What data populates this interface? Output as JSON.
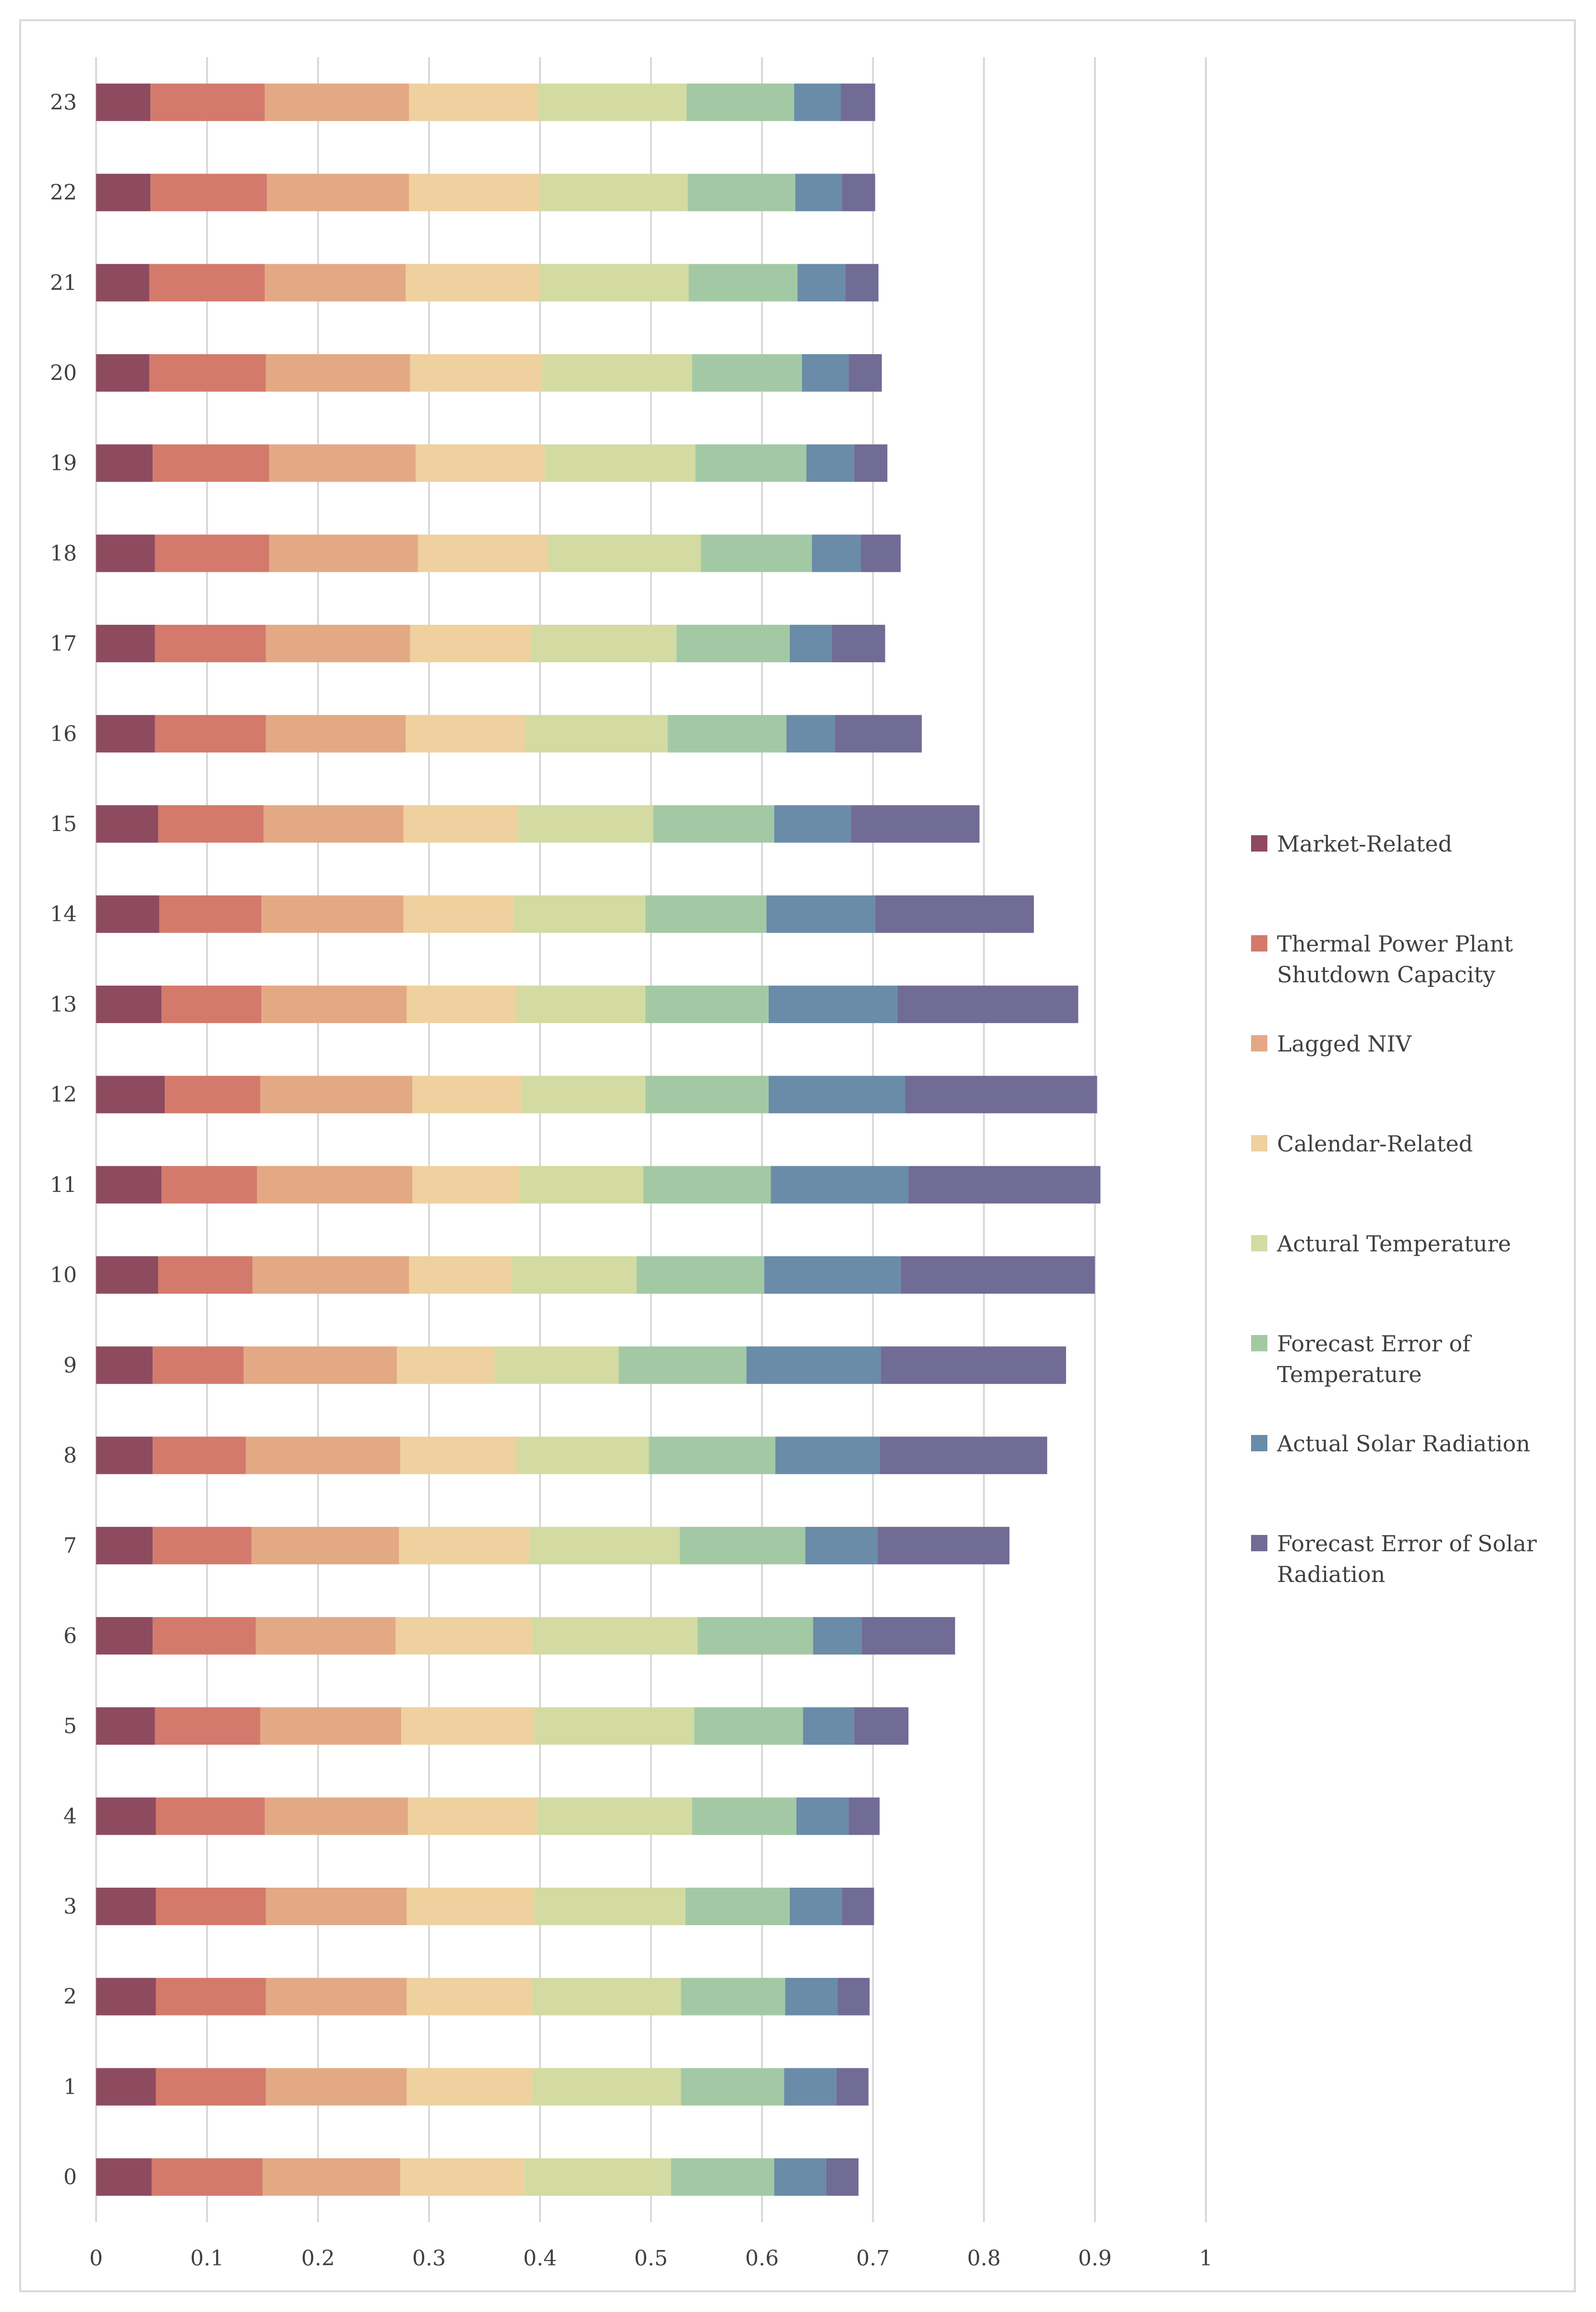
{
  "chart_data": {
    "type": "bar",
    "orientation": "horizontal",
    "stacked": true,
    "title": "",
    "xlabel": "",
    "ylabel": "",
    "xlim": [
      0,
      1
    ],
    "x_ticks": [
      "0",
      "0.1",
      "0.2",
      "0.3",
      "0.4",
      "0.5",
      "0.6",
      "0.7",
      "0.8",
      "0.9",
      "1"
    ],
    "grid": "vertical",
    "legend_position": "right",
    "categories": [
      "0",
      "1",
      "2",
      "3",
      "4",
      "5",
      "6",
      "7",
      "8",
      "9",
      "10",
      "11",
      "12",
      "13",
      "14",
      "15",
      "16",
      "17",
      "18",
      "19",
      "20",
      "21",
      "22",
      "23"
    ],
    "series": [
      {
        "name": "Market-Related",
        "color": "#8e4b5f",
        "values": [
          0.05,
          0.054,
          0.054,
          0.054,
          0.054,
          0.053,
          0.051,
          0.051,
          0.051,
          0.051,
          0.056,
          0.059,
          0.062,
          0.059,
          0.057,
          0.056,
          0.053,
          0.053,
          0.053,
          0.051,
          0.048,
          0.048,
          0.049,
          0.049
        ]
      },
      {
        "name": "Thermal Power Plant Shutdown Capacity",
        "color": "#d37a6c",
        "values": [
          0.1,
          0.099,
          0.099,
          0.099,
          0.098,
          0.095,
          0.093,
          0.089,
          0.084,
          0.082,
          0.085,
          0.086,
          0.086,
          0.09,
          0.092,
          0.095,
          0.1,
          0.1,
          0.103,
          0.105,
          0.105,
          0.104,
          0.105,
          0.103
        ]
      },
      {
        "name": "Lagged NIV",
        "color": "#e3a985",
        "values": [
          0.124,
          0.127,
          0.127,
          0.127,
          0.129,
          0.127,
          0.126,
          0.133,
          0.139,
          0.138,
          0.141,
          0.14,
          0.137,
          0.131,
          0.128,
          0.126,
          0.126,
          0.13,
          0.134,
          0.132,
          0.13,
          0.127,
          0.128,
          0.13
        ]
      },
      {
        "name": "Calendar-Related",
        "color": "#eed19e",
        "values": [
          0.112,
          0.113,
          0.113,
          0.115,
          0.116,
          0.12,
          0.123,
          0.117,
          0.105,
          0.088,
          0.092,
          0.096,
          0.098,
          0.099,
          0.099,
          0.103,
          0.108,
          0.109,
          0.117,
          0.116,
          0.119,
          0.121,
          0.118,
          0.116
        ]
      },
      {
        "name": "Actural Temperature",
        "color": "#d3dba2",
        "values": [
          0.132,
          0.134,
          0.134,
          0.136,
          0.14,
          0.144,
          0.149,
          0.136,
          0.119,
          0.112,
          0.113,
          0.112,
          0.112,
          0.116,
          0.119,
          0.122,
          0.128,
          0.131,
          0.138,
          0.136,
          0.135,
          0.134,
          0.133,
          0.134
        ]
      },
      {
        "name": "Forecast Error of Temperature",
        "color": "#a3c9a4",
        "values": [
          0.093,
          0.093,
          0.094,
          0.094,
          0.094,
          0.098,
          0.104,
          0.113,
          0.114,
          0.115,
          0.115,
          0.115,
          0.111,
          0.111,
          0.109,
          0.109,
          0.107,
          0.102,
          0.1,
          0.1,
          0.099,
          0.098,
          0.097,
          0.097
        ]
      },
      {
        "name": "Actual Solar Radiation",
        "color": "#6a8ca8",
        "values": [
          0.047,
          0.047,
          0.047,
          0.047,
          0.047,
          0.046,
          0.044,
          0.065,
          0.094,
          0.121,
          0.123,
          0.124,
          0.123,
          0.116,
          0.098,
          0.069,
          0.044,
          0.038,
          0.044,
          0.043,
          0.042,
          0.043,
          0.042,
          0.042
        ]
      },
      {
        "name": "Forecast Error of Solar Radiation",
        "color": "#716c95",
        "values": [
          0.029,
          0.029,
          0.029,
          0.029,
          0.028,
          0.049,
          0.084,
          0.119,
          0.151,
          0.167,
          0.175,
          0.173,
          0.173,
          0.163,
          0.143,
          0.116,
          0.078,
          0.048,
          0.036,
          0.03,
          0.03,
          0.03,
          0.03,
          0.031
        ]
      }
    ]
  }
}
